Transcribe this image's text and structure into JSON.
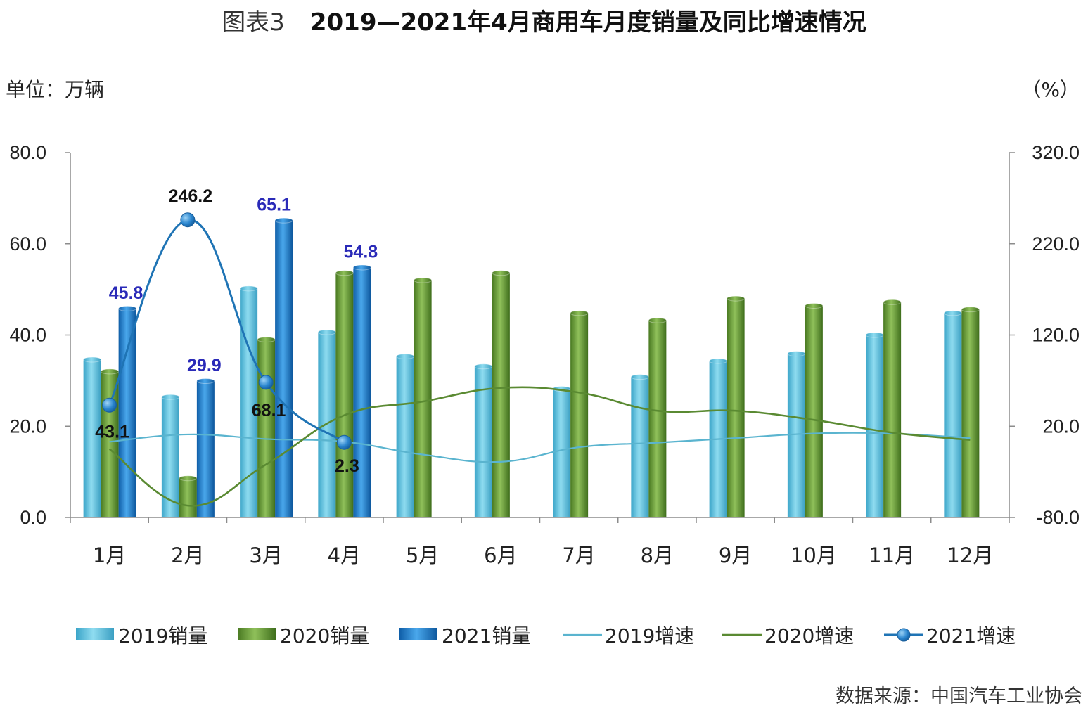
{
  "header": {
    "title_prefix": "图表3",
    "title": "2019—2021年4月商用车月度销量及同比增速情况",
    "unit_left": "单位：万辆",
    "unit_right": "（%）"
  },
  "footer": {
    "source": "数据来源：中国汽车工业协会"
  },
  "colors": {
    "s2019": "#4db6d6",
    "s2020": "#5b8f2f",
    "s2021": "#1a72c0",
    "g2019": "#5ab4cf",
    "g2020": "#5a8a32",
    "g2021": "#1f74b5",
    "label_blue": "#2a2ab8",
    "label_black": "#111111"
  },
  "chart_data": {
    "type": "bar",
    "categories": [
      "1月",
      "2月",
      "3月",
      "4月",
      "5月",
      "6月",
      "7月",
      "8月",
      "9月",
      "10月",
      "11月",
      "12月"
    ],
    "y_left": {
      "min": 0,
      "max": 80,
      "step": 20,
      "ticks": [
        "0.0",
        "20.0",
        "40.0",
        "60.0",
        "80.0"
      ]
    },
    "y_right": {
      "min": -80,
      "max": 320,
      "step": 100,
      "ticks": [
        "-80.0",
        "20.0",
        "120.0",
        "220.0",
        "320.0"
      ]
    },
    "bar_series": [
      {
        "name": "2019销量",
        "values": [
          34.6,
          26.4,
          50.2,
          40.6,
          35.3,
          33.1,
          28.2,
          30.8,
          34.3,
          35.9,
          40.0,
          44.8
        ]
      },
      {
        "name": "2020销量",
        "values": [
          32.0,
          8.6,
          39.0,
          53.6,
          52.0,
          53.6,
          44.8,
          43.2,
          48.0,
          46.4,
          47.2,
          45.6
        ]
      },
      {
        "name": "2021销量",
        "values": [
          45.8,
          29.9,
          65.1,
          54.8,
          null,
          null,
          null,
          null,
          null,
          null,
          null,
          null
        ]
      }
    ],
    "line_series": [
      {
        "name": "2019增速",
        "axis": "right",
        "values": [
          3,
          11,
          6,
          3,
          -11,
          -19,
          -3,
          2,
          7,
          12,
          12,
          7
        ]
      },
      {
        "name": "2020增速",
        "axis": "right",
        "values": [
          -5,
          -67,
          -22,
          32,
          47,
          62,
          57,
          37,
          37,
          27,
          13,
          5
        ]
      },
      {
        "name": "2021增速",
        "axis": "right",
        "values": [
          43.1,
          246.2,
          68.1,
          2.3,
          null,
          null,
          null,
          null,
          null,
          null,
          null,
          null
        ],
        "markers": true
      }
    ],
    "bar_labels": [
      {
        "series": "2021销量",
        "index": 0,
        "text": "45.8"
      },
      {
        "series": "2021销量",
        "index": 1,
        "text": "29.9"
      },
      {
        "series": "2021销量",
        "index": 2,
        "text": "65.1"
      },
      {
        "series": "2021销量",
        "index": 3,
        "text": "54.8"
      }
    ],
    "line_labels": [
      {
        "series": "2021增速",
        "index": 0,
        "text": "43.1"
      },
      {
        "series": "2021增速",
        "index": 1,
        "text": "246.2"
      },
      {
        "series": "2021增速",
        "index": 2,
        "text": "68.1"
      },
      {
        "series": "2021增速",
        "index": 3,
        "text": "2.3"
      }
    ],
    "legend": {
      "position": "bottom",
      "items": [
        "2019销量",
        "2020销量",
        "2021销量",
        "2019增速",
        "2020增速",
        "2021增速"
      ]
    }
  }
}
